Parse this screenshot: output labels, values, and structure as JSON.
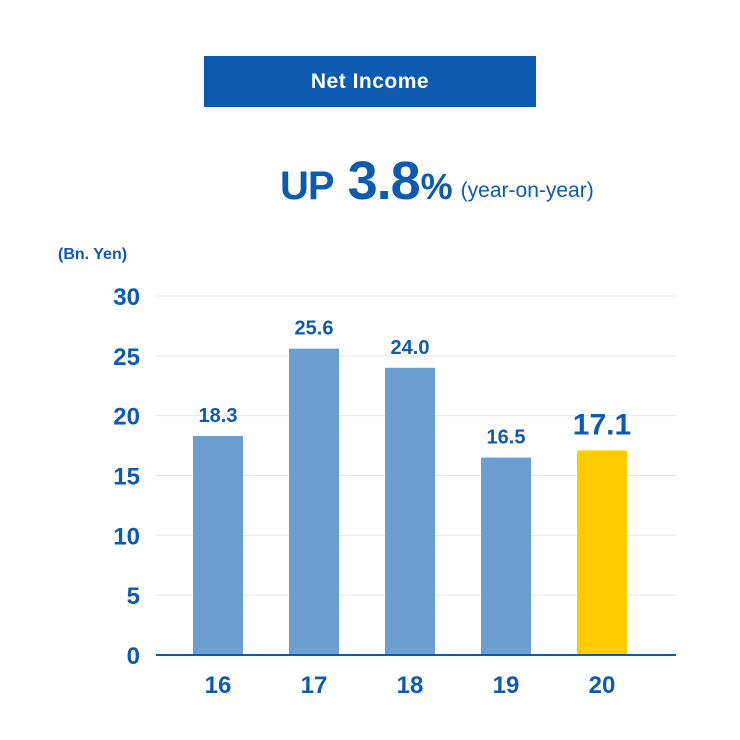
{
  "header": {
    "title": "Net Income",
    "up_label": "UP",
    "change_value": "3.8",
    "change_unit": "%",
    "change_note": "(year-on-year)"
  },
  "colors": {
    "accent": "#0d5bb0",
    "bar": "#6a9fcf",
    "highlight_bar": "#ffcc00",
    "grid": "#dfe8f1",
    "axis": "#0d5bb0"
  },
  "chart_data": {
    "type": "bar",
    "title": "Net Income",
    "ylabel": "(Bn. Yen)",
    "xlabel": "",
    "categories": [
      "16",
      "17",
      "18",
      "19",
      "20"
    ],
    "values": [
      18.3,
      25.6,
      24.0,
      16.5,
      17.1
    ],
    "value_labels": [
      "18.3",
      "25.6",
      "24.0",
      "16.5",
      "17.1"
    ],
    "highlight_index": 4,
    "ylim": [
      0,
      30
    ],
    "yticks": [
      0,
      5,
      10,
      15,
      20,
      25,
      30
    ],
    "grid": true,
    "legend": "none"
  }
}
